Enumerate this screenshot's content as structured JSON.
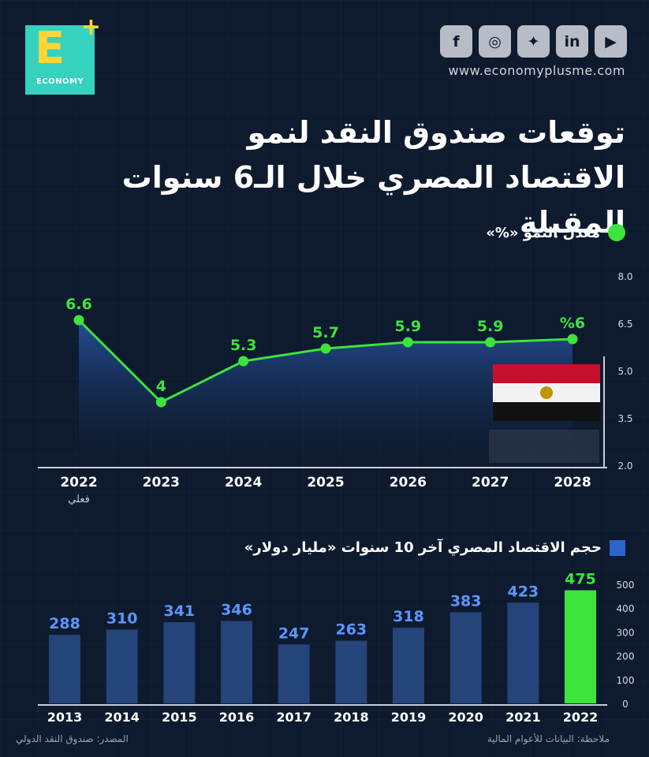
{
  "brand": {
    "logo_letter": "E",
    "logo_plus": "+",
    "logo_word": "ECONOMY",
    "site": "www.economyplusme.com",
    "social": [
      "facebook-icon",
      "instagram-icon",
      "twitter-icon",
      "linkedin-icon",
      "youtube-icon"
    ]
  },
  "title": "توقعات صندوق النقد لنمو الاقتصاد المصري خلال الـ6 سنوات المقبلة",
  "legend_growth": "معدل النمو «%»",
  "legend_gdp": "حجم الاقتصاد المصري آخر 10 سنوات «مليار دولار»",
  "footer": {
    "source": "المصدر: صندوق النقد الدولي",
    "note": "ملاحظة: البيانات للأعوام المالية"
  },
  "colors": {
    "background": "#0e1a2e",
    "line": "#3ce43c",
    "bar": "#24447a",
    "bar_highlight": "#3ce43c",
    "label_blue": "#5b96ff"
  },
  "chart_data": [
    {
      "type": "line",
      "categories": [
        "2022",
        "2023",
        "2024",
        "2025",
        "2026",
        "2027",
        "2028"
      ],
      "category_sublabels": [
        "فعلي",
        "",
        "",
        "",
        "",
        "",
        ""
      ],
      "values": [
        6.6,
        4,
        5.3,
        5.7,
        5.9,
        5.9,
        6
      ],
      "data_labels": [
        "6.6",
        "4",
        "5.3",
        "5.7",
        "5.9",
        "5.9",
        "%6"
      ],
      "yticks": [
        "2.0",
        "3.5",
        "5.0",
        "6.5",
        "8.0"
      ],
      "ylim": [
        2.0,
        8.0
      ],
      "grid": false,
      "legend_position": "top-right"
    },
    {
      "type": "bar",
      "categories": [
        "2013",
        "2014",
        "2015",
        "2016",
        "2017",
        "2018",
        "2019",
        "2020",
        "2021",
        "2022"
      ],
      "values": [
        288,
        310,
        341,
        346,
        247,
        263,
        318,
        383,
        423,
        475
      ],
      "data_labels": [
        "288",
        "310",
        "341",
        "346",
        "247",
        "263",
        "318",
        "383",
        "423",
        "475"
      ],
      "highlight_index": 9,
      "yticks": [
        "0",
        "100",
        "200",
        "300",
        "400",
        "500"
      ],
      "ylim": [
        0,
        500
      ],
      "grid": false,
      "legend_position": "top-right"
    }
  ]
}
